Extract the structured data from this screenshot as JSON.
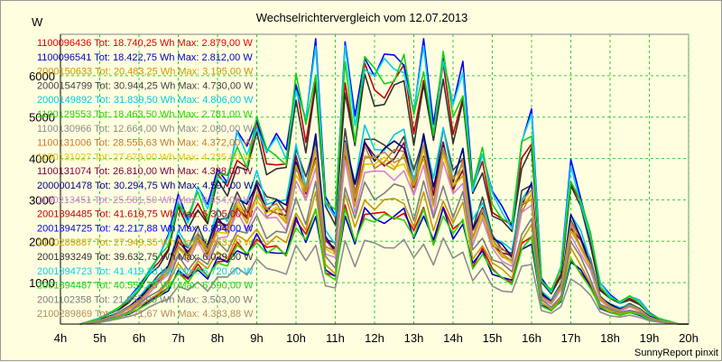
{
  "chart_data": {
    "type": "line",
    "title": "Wechselrichtervergleich vom 12.07.2013",
    "ylabel": "W",
    "credit": "SunnyReport pinxit",
    "x_ticks": [
      "4h",
      "5h",
      "6h",
      "7h",
      "8h",
      "9h",
      "10h",
      "11h",
      "12h",
      "13h",
      "14h",
      "15h",
      "16h",
      "17h",
      "18h",
      "19h",
      "20h"
    ],
    "xlim": [
      4,
      20
    ],
    "y_ticks": [
      1000,
      2000,
      3000,
      4000,
      5000,
      6000
    ],
    "ylim": [
      0,
      7000
    ],
    "grid": true,
    "legend_placement": "top-left",
    "x": [
      4.5,
      4.75,
      5,
      5.25,
      5.5,
      5.75,
      6,
      6.25,
      6.5,
      6.75,
      7,
      7.25,
      7.5,
      7.75,
      8,
      8.25,
      8.5,
      8.75,
      9,
      9.25,
      9.5,
      9.75,
      10,
      10.25,
      10.5,
      10.75,
      11,
      11.25,
      11.5,
      11.75,
      12,
      12.25,
      12.5,
      12.75,
      13,
      13.25,
      13.5,
      13.75,
      14,
      14.25,
      14.5,
      14.75,
      15,
      15.25,
      15.5,
      15.75,
      16,
      16.25,
      16.5,
      16.75,
      17,
      17.25,
      17.5,
      17.75,
      18,
      18.25,
      18.5,
      18.75,
      19,
      19.25,
      19.5,
      19.75,
      20
    ],
    "profile": [
      0.0,
      0.01,
      0.02,
      0.04,
      0.06,
      0.09,
      0.13,
      0.19,
      0.24,
      0.3,
      0.45,
      0.38,
      0.48,
      0.4,
      0.55,
      0.52,
      0.66,
      0.6,
      0.74,
      0.62,
      0.64,
      0.6,
      0.88,
      0.72,
      0.96,
      0.45,
      0.4,
      0.97,
      0.7,
      0.96,
      0.9,
      0.91,
      0.92,
      0.95,
      0.75,
      0.97,
      0.7,
      0.98,
      0.76,
      0.88,
      0.5,
      0.62,
      0.45,
      0.4,
      0.36,
      0.65,
      0.72,
      0.16,
      0.12,
      0.2,
      0.55,
      0.45,
      0.32,
      0.14,
      0.1,
      0.08,
      0.1,
      0.08,
      0.04,
      0.02,
      0.01,
      0.0,
      0.0
    ],
    "series": [
      {
        "label": "1100096436 Tot: 18.740,25 Wh Max: 2.879,00 W",
        "color": "#e00000",
        "max": 2879,
        "total": 18740.25
      },
      {
        "label": "1100096541 Tot: 18.422,75 Wh Max: 2.812,00 W",
        "color": "#0000c8",
        "max": 2812,
        "total": 18422.75
      },
      {
        "label": "2000150633 Tot: 20.483,25 Wh Max: 3.195,00 W",
        "color": "#c89600",
        "max": 3195,
        "total": 20483.25
      },
      {
        "label": "2000154799 Tot: 30.944,25 Wh Max: 4.730,00 W",
        "color": "#404040",
        "max": 4730,
        "total": 30944.25
      },
      {
        "label": "2000149892 Tot: 31.839,50 Wh Max: 4.806,00 W",
        "color": "#00c8e6",
        "max": 4806,
        "total": 31839.5
      },
      {
        "label": "1100129553 Tot: 18.463,50 Wh Max: 2.781,00 W",
        "color": "#2ad400",
        "max": 2781,
        "total": 18463.5
      },
      {
        "label": "1100130966 Tot: 12.664,00 Wh Max: 2.080,00 W",
        "color": "#8c8c8c",
        "max": 2080,
        "total": 12664
      },
      {
        "label": "1100131006 Tot: 28.555,63 Wh Max: 4.372,00 W",
        "color": "#c87832",
        "max": 4372,
        "total": 28555.63
      },
      {
        "label": "1100131027 Tot: 27.679,00 Wh Max: 4.235,00 W",
        "color": "#e6c800",
        "max": 4235,
        "total": 27679
      },
      {
        "label": "1100131074 Tot: 26.810,00 Wh Max: 4.398,00 W",
        "color": "#800040",
        "max": 4398,
        "total": 26810
      },
      {
        "label": "2000001478 Tot: 30.294,75 Wh Max: 4.597,00 W",
        "color": "#000080",
        "max": 4597,
        "total": 30294.75
      },
      {
        "label": "1100213451 Tot: 25.581,50 Wh Max: 3.954,00 W",
        "color": "#d282d2",
        "max": 3954,
        "total": 25581.5
      },
      {
        "label": "2001394485 Tot: 41.619,75 Wh Max: 6.305,00 W",
        "color": "#c00000",
        "max": 6305,
        "total": 41619.75
      },
      {
        "label": "2001394725 Tot: 42.217,88 Wh Max: 6.894,00 W",
        "color": "#0000ff",
        "max": 6894,
        "total": 42217.88
      },
      {
        "label": "2100289887 Tot: 27.949,35 Wh Max: 4.263,00 W",
        "color": "#d2a000",
        "max": 4263,
        "total": 27949.35
      },
      {
        "label": "2001393249 Tot: 39.632,75 Wh Max: 6.039,00 W",
        "color": "#303030",
        "max": 6039,
        "total": 39632.75
      },
      {
        "label": "2001394723 Tot: 41.419,38 Wh Max: 6.720,00 W",
        "color": "#00d2f0",
        "max": 6720,
        "total": 41419.38
      },
      {
        "label": "2001394487 Tot: 40.559,75 Wh Max: 6.590,00 W",
        "color": "#14d214",
        "max": 6590,
        "total": 40559.75
      },
      {
        "label": "2001102358 Tot: 21.953,00 Wh Max: 3.503,00 W",
        "color": "#7d7d7d",
        "max": 3503,
        "total": 21953
      },
      {
        "label": "2100289869 Tot: 28.771,67 Wh Max: 4.383,88 W",
        "color": "#b48c50",
        "max": 4383.88,
        "total": 28771.67
      }
    ]
  }
}
